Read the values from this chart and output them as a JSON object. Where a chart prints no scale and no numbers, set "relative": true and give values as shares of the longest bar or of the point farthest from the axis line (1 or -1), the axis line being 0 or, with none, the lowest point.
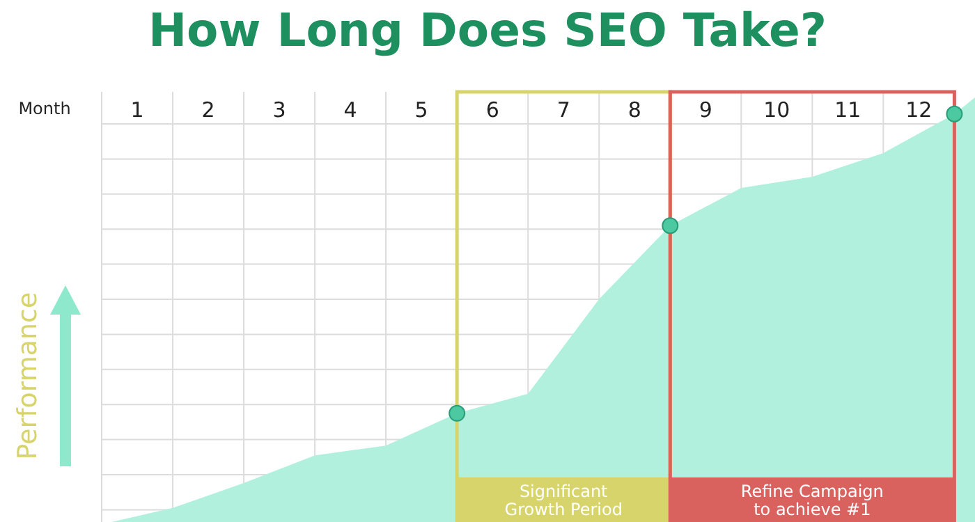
{
  "chart_data": {
    "type": "area",
    "title": "How Long Does SEO Take?",
    "xlabel": "Month",
    "ylabel": "Performance",
    "relative": true,
    "grid": true,
    "x": [
      0.14,
      1,
      2,
      3,
      4,
      5,
      6,
      7,
      8,
      9,
      10,
      11,
      12,
      12.29
    ],
    "xlim": [
      0,
      12.29
    ],
    "xticks": [
      {
        "value": 0,
        "label": null
      },
      {
        "value": 0.5,
        "label": "1"
      },
      {
        "value": 1,
        "label": null
      },
      {
        "value": 1.5,
        "label": "2"
      },
      {
        "value": 2,
        "label": null
      },
      {
        "value": 2.5,
        "label": "3"
      },
      {
        "value": 3,
        "label": null
      },
      {
        "value": 3.5,
        "label": "4"
      },
      {
        "value": 4,
        "label": null
      },
      {
        "value": 4.5,
        "label": "5"
      },
      {
        "value": 5.5,
        "label": "6"
      },
      {
        "value": 6,
        "label": null
      },
      {
        "value": 6.5,
        "label": "7"
      },
      {
        "value": 7,
        "label": null
      },
      {
        "value": 7.5,
        "label": "8"
      },
      {
        "value": 8.5,
        "label": "9"
      },
      {
        "value": 9,
        "label": null
      },
      {
        "value": 9.5,
        "label": "10"
      },
      {
        "value": 10,
        "label": null
      },
      {
        "value": 10.5,
        "label": "11"
      },
      {
        "value": 11,
        "label": null
      },
      {
        "value": 11.5,
        "label": "12"
      }
    ],
    "series": [
      {
        "type": "area",
        "color": "#b0f0dc",
        "values": [
          0,
          0.033,
          0.092,
          0.157,
          0.18,
          0.256,
          0.302,
          0.525,
          0.698,
          0.787,
          0.813,
          0.869,
          0.961,
          1
        ]
      },
      {
        "type": "scatter",
        "color": "#4cc9a0",
        "marker": "circle",
        "x": [
          5,
          8,
          12
        ],
        "values": [
          0.256,
          0.698,
          0.961
        ]
      }
    ],
    "bands": [
      {
        "axis": "x",
        "from": 5,
        "to": 8,
        "label": "Significant Growth Period",
        "color": "#d6d46a"
      },
      {
        "axis": "x",
        "from": 8,
        "to": 12,
        "label": "Refine Campaign to achieve #1",
        "color": "#d9625f"
      }
    ]
  }
}
